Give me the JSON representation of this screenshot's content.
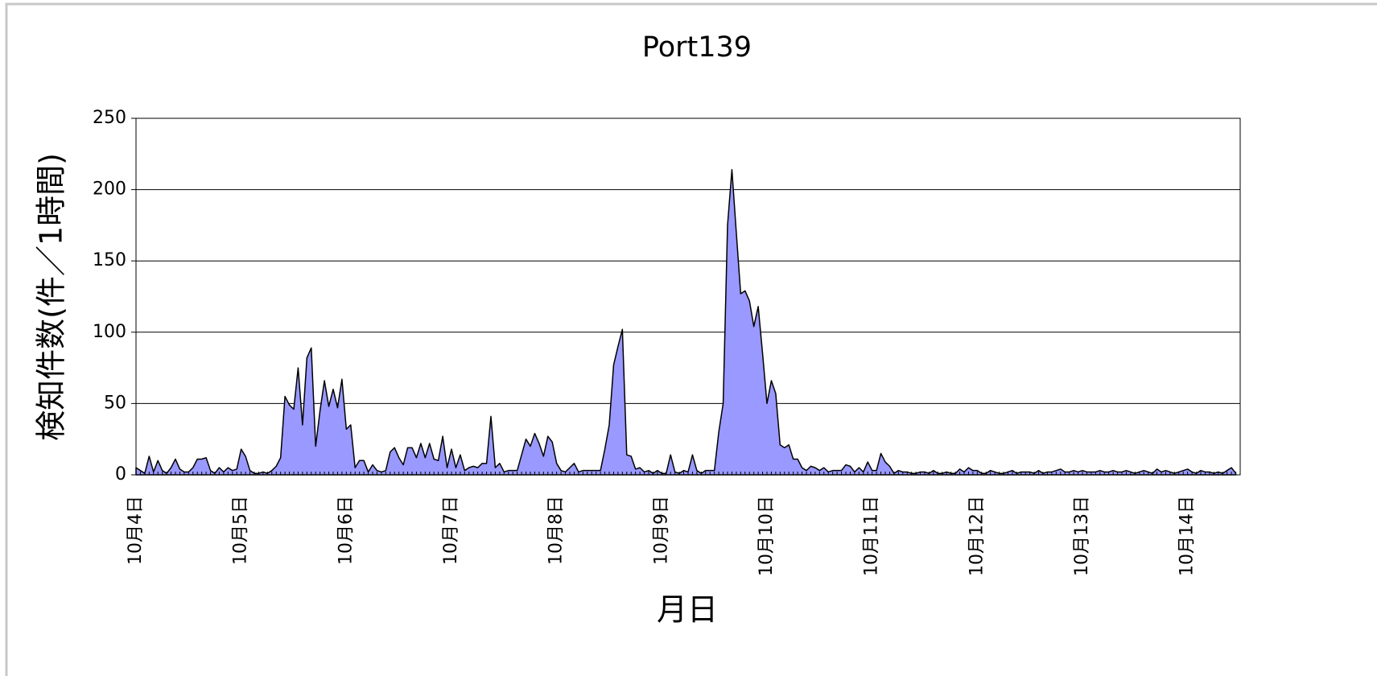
{
  "chart_data": {
    "type": "area",
    "title": "Port139",
    "x_label": "月日",
    "y_label": "検知件数(件／1時間)",
    "categories": [
      "10月4日",
      null,
      null,
      null,
      null,
      null,
      null,
      null,
      null,
      null,
      null,
      null,
      null,
      null,
      null,
      null,
      null,
      null,
      null,
      null,
      null,
      null,
      null,
      null,
      "10月5日",
      null,
      null,
      null,
      null,
      null,
      null,
      null,
      null,
      null,
      null,
      null,
      null,
      null,
      null,
      null,
      null,
      null,
      null,
      null,
      null,
      null,
      null,
      null,
      "10月6日",
      null,
      null,
      null,
      null,
      null,
      null,
      null,
      null,
      null,
      null,
      null,
      null,
      null,
      null,
      null,
      null,
      null,
      null,
      null,
      null,
      null,
      null,
      null,
      "10月7日",
      null,
      null,
      null,
      null,
      null,
      null,
      null,
      null,
      null,
      null,
      null,
      null,
      null,
      null,
      null,
      null,
      null,
      null,
      null,
      null,
      null,
      null,
      null,
      "10月8日",
      null,
      null,
      null,
      null,
      null,
      null,
      null,
      null,
      null,
      null,
      null,
      null,
      null,
      null,
      null,
      null,
      null,
      null,
      null,
      null,
      null,
      null,
      null,
      "10月9日",
      null,
      null,
      null,
      null,
      null,
      null,
      null,
      null,
      null,
      null,
      null,
      null,
      null,
      null,
      null,
      null,
      null,
      null,
      null,
      null,
      null,
      null,
      null,
      "10月10日",
      null,
      null,
      null,
      null,
      null,
      null,
      null,
      null,
      null,
      null,
      null,
      null,
      null,
      null,
      null,
      null,
      null,
      null,
      null,
      null,
      null,
      null,
      null,
      "10月11日",
      null,
      null,
      null,
      null,
      null,
      null,
      null,
      null,
      null,
      null,
      null,
      null,
      null,
      null,
      null,
      null,
      null,
      null,
      null,
      null,
      null,
      null,
      null,
      "10月12日",
      null,
      null,
      null,
      null,
      null,
      null,
      null,
      null,
      null,
      null,
      null,
      null,
      null,
      null,
      null,
      null,
      null,
      null,
      null,
      null,
      null,
      null,
      null,
      "10月13日",
      null,
      null,
      null,
      null,
      null,
      null,
      null,
      null,
      null,
      null,
      null,
      null,
      null,
      null,
      null,
      null,
      null,
      null,
      null,
      null,
      null,
      null,
      null,
      "10月14日",
      null,
      null,
      null,
      null,
      null,
      null,
      null,
      null,
      null,
      null,
      null
    ],
    "series": [
      {
        "name": "Port139",
        "color": "#9999ff",
        "values": [
          5,
          3,
          1,
          13,
          2,
          10,
          3,
          1,
          5,
          11,
          4,
          2,
          2,
          5,
          11,
          11,
          12,
          3,
          1,
          5,
          2,
          5,
          3,
          4,
          18,
          13,
          3,
          1,
          1,
          2,
          1,
          3,
          6,
          12,
          55,
          49,
          46,
          75,
          35,
          82,
          89,
          20,
          45,
          66,
          48,
          60,
          47,
          67,
          32,
          35,
          5,
          10,
          10,
          2,
          7,
          3,
          2,
          3,
          16,
          19,
          12,
          7,
          19,
          19,
          12,
          22,
          12,
          22,
          11,
          10,
          27,
          5,
          18,
          5,
          14,
          3,
          5,
          6,
          5,
          8,
          8,
          41,
          5,
          8,
          2,
          3,
          3,
          3,
          14,
          25,
          20,
          29,
          22,
          13,
          27,
          23,
          8,
          3,
          2,
          5,
          8,
          2,
          3,
          3,
          3,
          3,
          3,
          18,
          35,
          77,
          90,
          102,
          14,
          13,
          4,
          5,
          2,
          3,
          1,
          3,
          1,
          1,
          14,
          2,
          1,
          3,
          2,
          14,
          3,
          1,
          3,
          3,
          3,
          30,
          50,
          175,
          214,
          170,
          127,
          129,
          122,
          104,
          118,
          85,
          50,
          66,
          57,
          21,
          19,
          21,
          11,
          11,
          5,
          3,
          6,
          5,
          3,
          5,
          2,
          3,
          3,
          3,
          7,
          6,
          2,
          5,
          2,
          9,
          3,
          3,
          15,
          9,
          6,
          1,
          3,
          2,
          2,
          1,
          1,
          2,
          2,
          1,
          3,
          1,
          1,
          2,
          1,
          1,
          4,
          2,
          5,
          3,
          3,
          1,
          1,
          3,
          2,
          1,
          1,
          2,
          3,
          1,
          2,
          2,
          2,
          1,
          3,
          1,
          2,
          2,
          3,
          4,
          2,
          2,
          3,
          2,
          3,
          2,
          2,
          2,
          3,
          2,
          2,
          3,
          2,
          2,
          3,
          2,
          1,
          2,
          3,
          2,
          1,
          4,
          2,
          3,
          2,
          1,
          2,
          3,
          4,
          2,
          1,
          3,
          2,
          2,
          1,
          2,
          1,
          3,
          5,
          1
        ]
      }
    ],
    "ylim": [
      0,
      250
    ],
    "yticks": [
      0,
      50,
      100,
      150,
      200,
      250
    ],
    "grid": true
  }
}
